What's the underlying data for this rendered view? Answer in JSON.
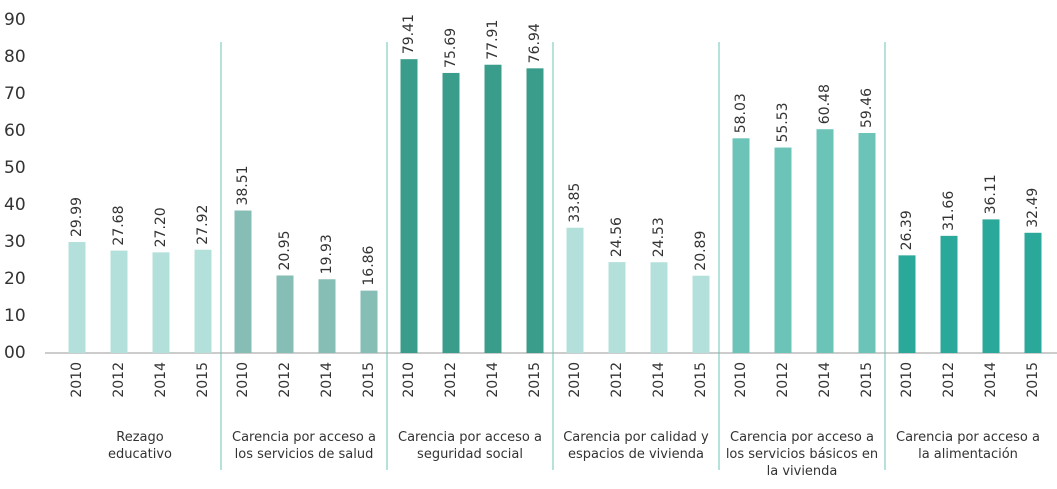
{
  "chart_data": {
    "type": "bar",
    "categories": [
      "2010",
      "2012",
      "2014",
      "2015"
    ],
    "series": [
      {
        "name": "Rezago educativo",
        "color": "#b3e0da",
        "values": [
          29.99,
          27.68,
          27.2,
          27.92
        ],
        "value_labels": [
          "29.99",
          "27.68",
          "27.20",
          "27.92"
        ]
      },
      {
        "name": "Carencia por acceso a los servicios de salud",
        "color": "#86bdb4",
        "values": [
          38.51,
          20.95,
          19.93,
          16.86
        ],
        "value_labels": [
          "38.51",
          "20.95",
          "19.93",
          "16.86"
        ]
      },
      {
        "name": "Carencia por acceso a seguridad social",
        "color": "#3a9c8a",
        "values": [
          79.41,
          75.69,
          77.91,
          76.94
        ],
        "value_labels": [
          "79.41",
          "75.69",
          "77.91",
          "76.94"
        ]
      },
      {
        "name": "Carencia por calidad y espacios de vivienda",
        "color": "#b3e0da",
        "values": [
          33.85,
          24.56,
          24.53,
          20.89
        ],
        "value_labels": [
          "33.85",
          "24.56",
          "24.53",
          "20.89"
        ]
      },
      {
        "name": "Carencia por acceso a los servicios básicos en la vivienda",
        "color": "#6cc4b8",
        "values": [
          58.03,
          55.53,
          60.48,
          59.46
        ],
        "value_labels": [
          "58.03",
          "55.53",
          "60.48",
          "59.46"
        ]
      },
      {
        "name": "Carencia por acceso a la alimentación",
        "color": "#2aa89a",
        "values": [
          26.39,
          31.66,
          36.11,
          32.49
        ],
        "value_labels": [
          "26.39",
          "31.66",
          "36.11",
          "32.49"
        ]
      }
    ],
    "ylim": [
      0,
      90
    ],
    "yticks": [
      {
        "value": 0,
        "label": "00"
      },
      10,
      20,
      30,
      40,
      50,
      60,
      70,
      80,
      90
    ],
    "grid": false
  }
}
